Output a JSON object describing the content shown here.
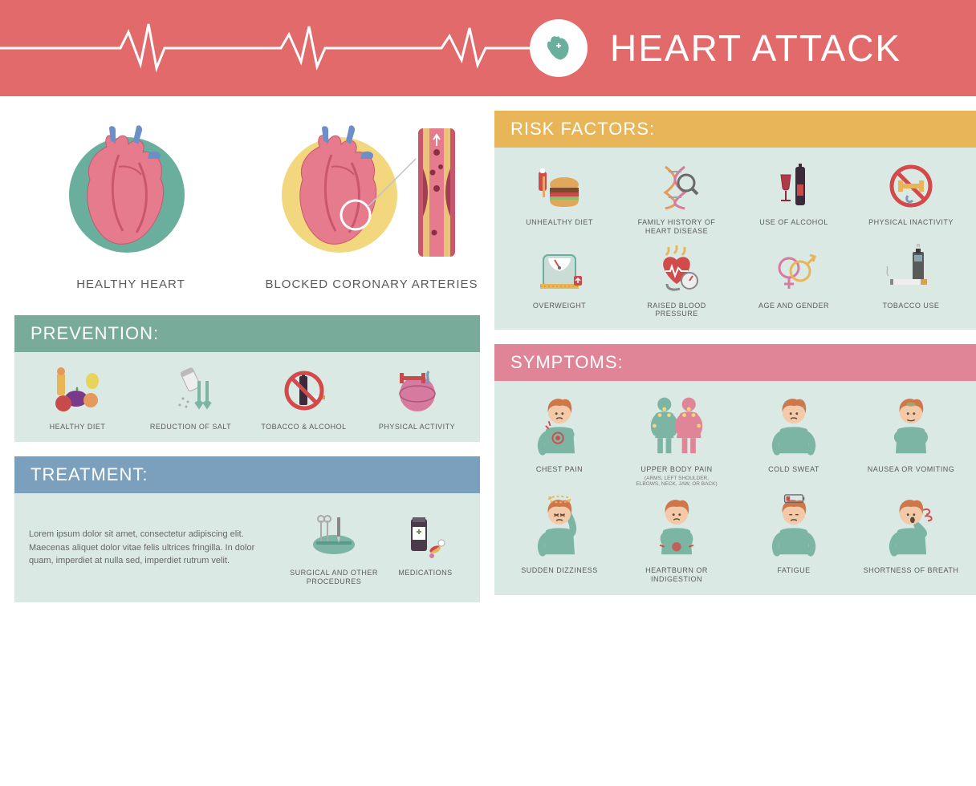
{
  "colors": {
    "header_bg": "#e36a6a",
    "header_text": "#ffffff",
    "badge_heart": "#6aae9e",
    "risk_header_bg": "#e8b558",
    "risk_body_bg": "#dbe9e5",
    "prevention_header_bg": "#79ab9b",
    "prevention_body_bg": "#dbe9e5",
    "treatment_header_bg": "#7aa0bd",
    "treatment_body_bg": "#dbe9e5",
    "symptoms_header_bg": "#df8597",
    "symptoms_body_bg": "#dbe9e5",
    "heart_circle_healthy": "#6aae9e",
    "heart_circle_blocked": "#f2d77e",
    "heart_fill": "#e67b8e",
    "heart_dark": "#c9566d",
    "vessel_blue": "#6c8fc7",
    "prohibit": "#d24a4a",
    "label_text": "#5a5a5a",
    "person_shirt": "#7cb5a4",
    "person_skin": "#f4c9a8",
    "person_hair": "#d07749"
  },
  "header": {
    "title": "HEART ATTACK",
    "title_fontsize": 46
  },
  "hearts": {
    "healthy_label": "HEALTHY HEART",
    "blocked_label": "BLOCKED CORONARY ARTERIES"
  },
  "risk": {
    "title": "RISK FACTORS:",
    "items": [
      {
        "label": "UNHEALTHY DIET",
        "icon": "burger"
      },
      {
        "label": "FAMILY HISTORY OF HEART DISEASE",
        "icon": "dna"
      },
      {
        "label": "USE OF ALCOHOL",
        "icon": "wine"
      },
      {
        "label": "PHYSICAL INACTIVITY",
        "icon": "no-exercise"
      },
      {
        "label": "OVERWEIGHT",
        "icon": "scale"
      },
      {
        "label": "RAISED BLOOD PRESSURE",
        "icon": "bp"
      },
      {
        "label": "AGE AND GENDER",
        "icon": "gender"
      },
      {
        "label": "TOBACCO USE",
        "icon": "cigarette"
      }
    ]
  },
  "prevention": {
    "title": "PREVENTION:",
    "items": [
      {
        "label": "HEALTHY DIET",
        "icon": "veggies"
      },
      {
        "label": "REDUCTION OF SALT",
        "icon": "salt"
      },
      {
        "label": "TOBACCO & ALCOHOL",
        "icon": "no-alcohol"
      },
      {
        "label": "PHYSICAL ACTIVITY",
        "icon": "fitness"
      }
    ]
  },
  "treatment": {
    "title": "TREATMENT:",
    "text": "Lorem ipsum dolor sit amet, consectetur adipiscing elit. Maecenas aliquet dolor vitae felis ultrices fringilla. In dolor quam, imperdiet at nulla sed, imperdiet rutrum velit.",
    "items": [
      {
        "label": "SURGICAL AND OTHER PROCEDURES",
        "icon": "surgery"
      },
      {
        "label": "MEDICATIONS",
        "icon": "pills"
      }
    ]
  },
  "symptoms": {
    "title": "SYMPTOMS:",
    "items": [
      {
        "label": "CHEST PAIN",
        "icon": "chest-pain"
      },
      {
        "label": "UPPER BODY PAIN",
        "sublabel": "(ARMS, LEFT SHOULDER, ELBOWS, NECK, JAW, OR BACK)",
        "icon": "upper-body"
      },
      {
        "label": "COLD SWEAT",
        "icon": "sweat"
      },
      {
        "label": "NAUSEA OR VOMITING",
        "icon": "nausea"
      },
      {
        "label": "SUDDEN DIZZINESS",
        "icon": "dizzy"
      },
      {
        "label": "HEARTBURN OR INDIGESTION",
        "icon": "heartburn"
      },
      {
        "label": "FATIGUE",
        "icon": "fatigue"
      },
      {
        "label": "SHORTNESS OF BREATH",
        "icon": "breath"
      }
    ]
  }
}
